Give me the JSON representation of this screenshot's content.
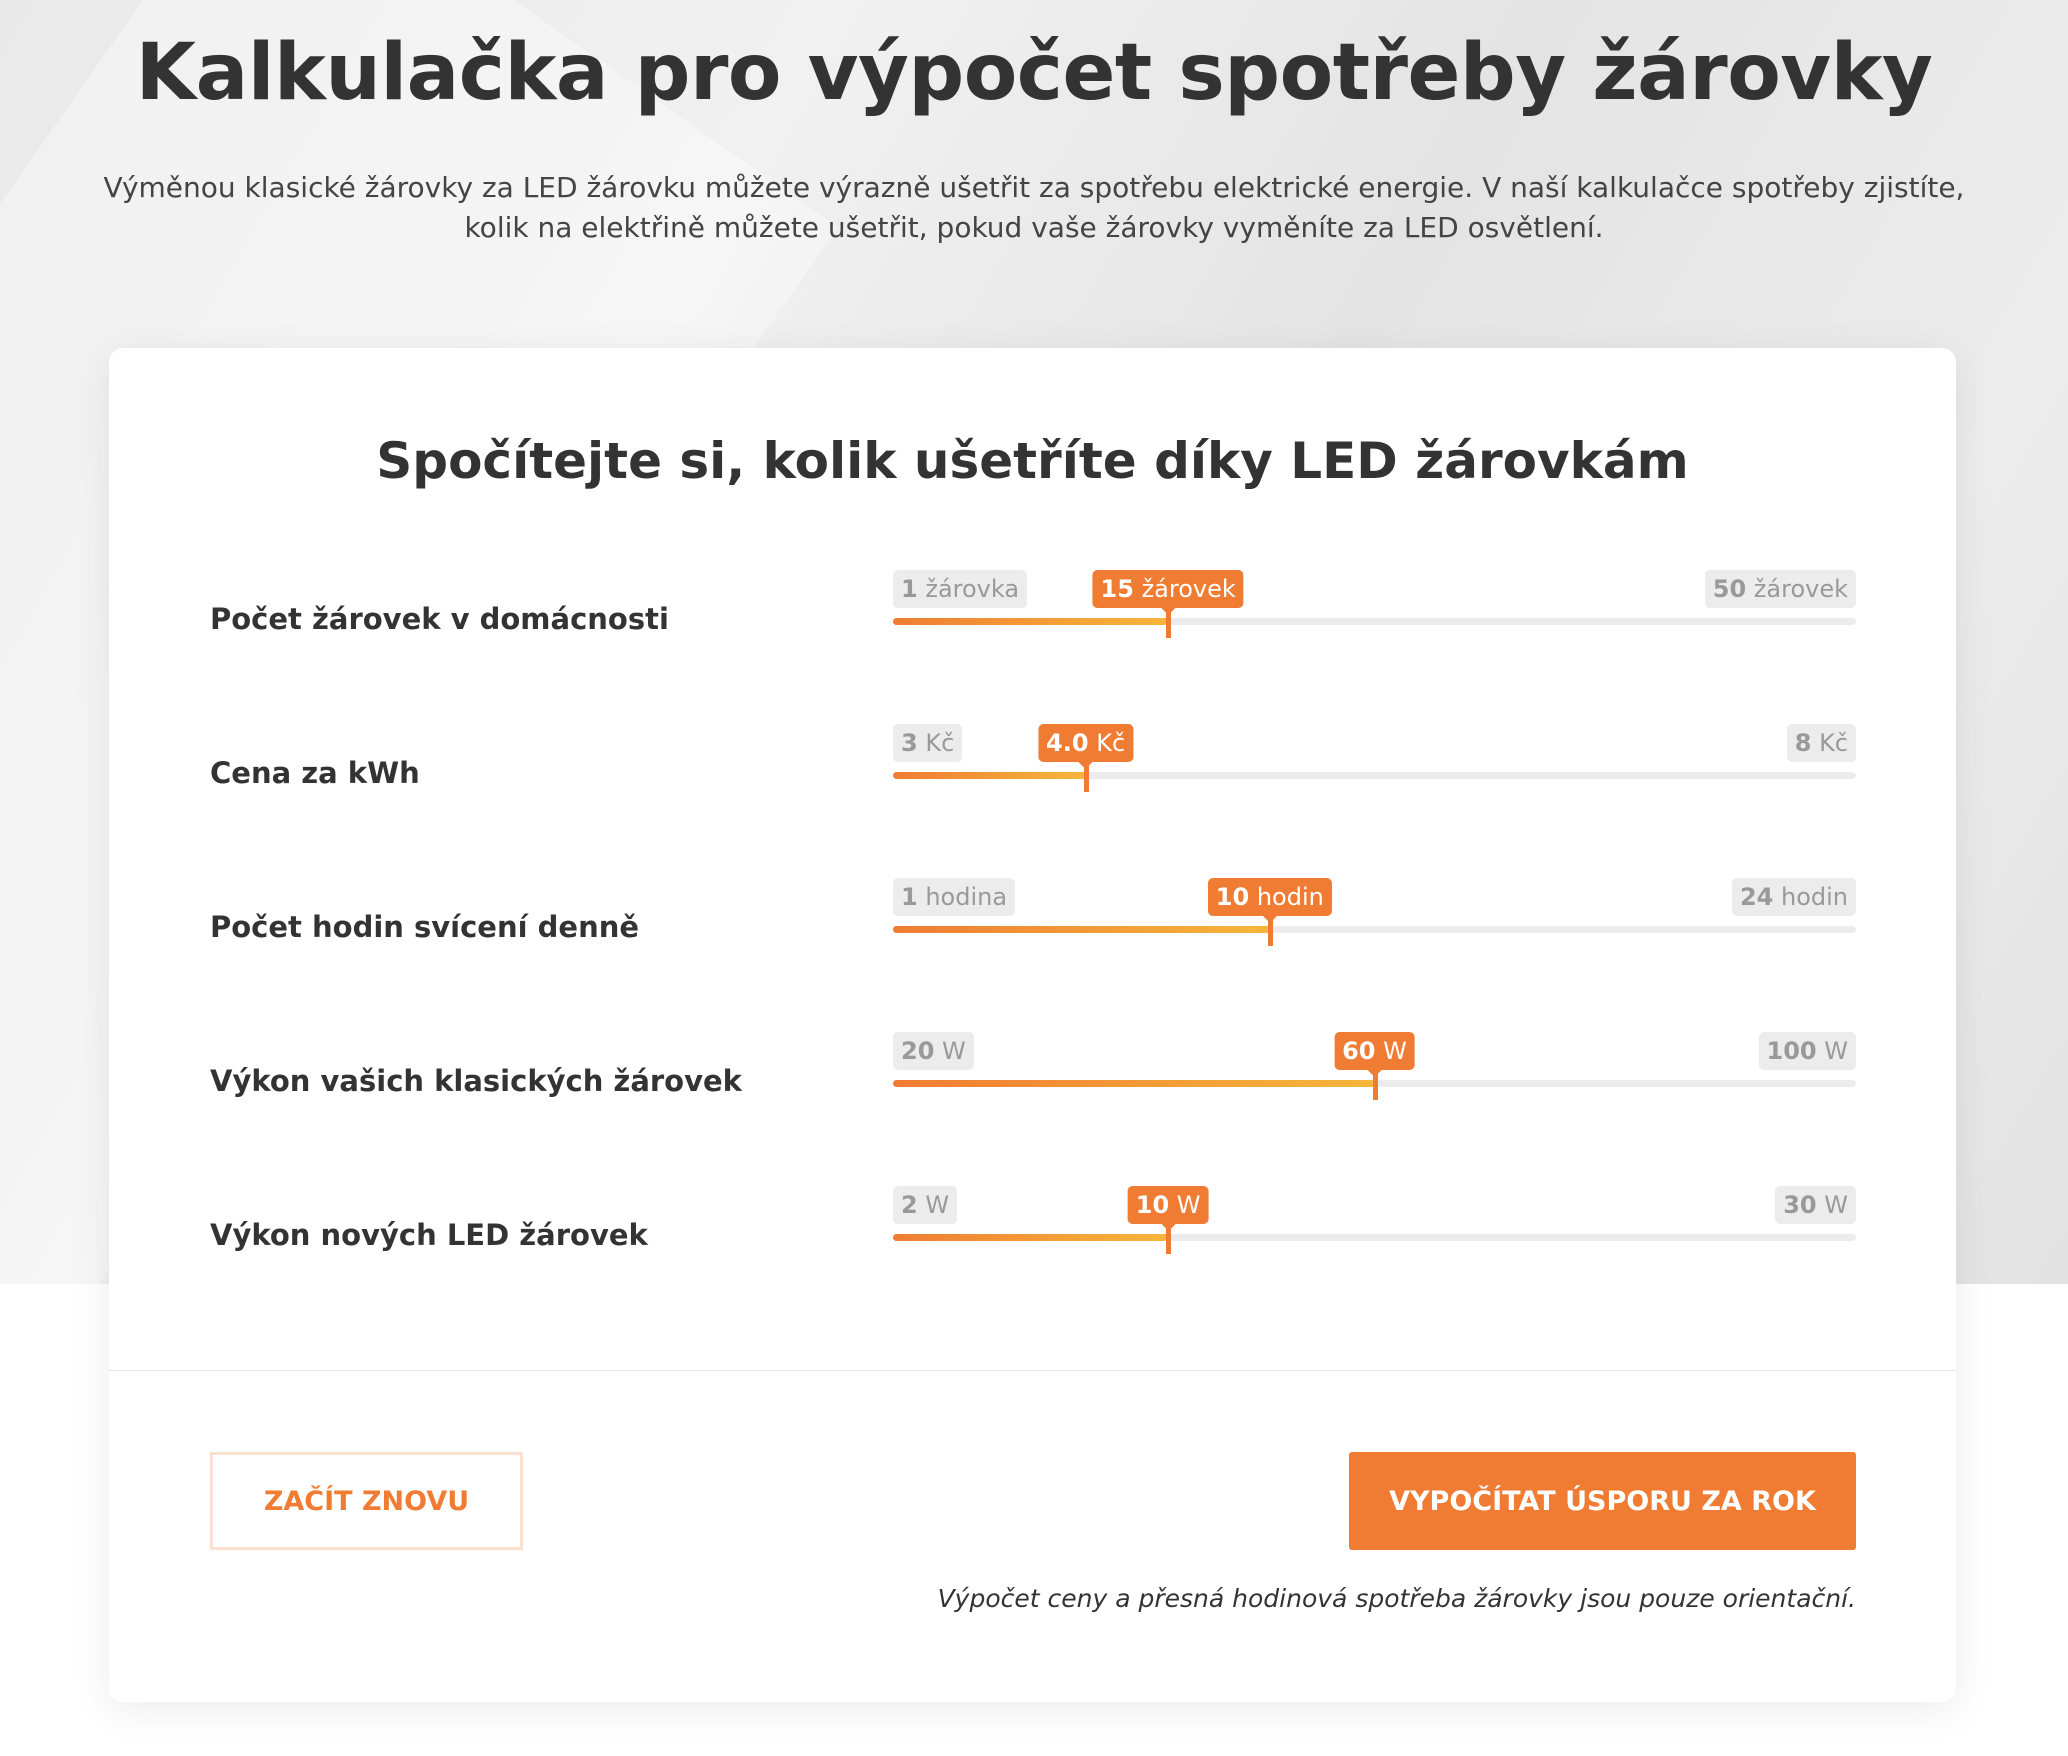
{
  "header": {
    "title": "Kalkulačka pro výpočet spotřeby žárovky",
    "subtitle": "Výměnou klasické žárovky za LED žárovku můžete výrazně ušetřit za spotřebu elektrické energie. V naší kalkulačce spotřeby zjistíte, kolik na elektřině můžete ušetřit, pokud vaše žárovky vyměníte za LED osvětlení."
  },
  "card": {
    "title": "Spočítejte si, kolik ušetříte díky LED žárovkám",
    "sliders": [
      {
        "label": "Počet žárovek v domácnosti",
        "min": 1,
        "min_unit": "žárovka",
        "max": 50,
        "max_unit": "žárovek",
        "value": 15,
        "value_text": "15",
        "value_unit": "žárovek"
      },
      {
        "label": "Cena za kWh",
        "min": 3,
        "min_unit": "Kč",
        "max": 8,
        "max_unit": "Kč",
        "value": 4.0,
        "value_text": "4.0",
        "value_unit": "Kč"
      },
      {
        "label": "Počet hodin svícení denně",
        "min": 1,
        "min_unit": "hodina",
        "max": 24,
        "max_unit": "hodin",
        "value": 10,
        "value_text": "10",
        "value_unit": "hodin"
      },
      {
        "label": "Výkon vašich klasických žárovek",
        "min": 20,
        "min_unit": "W",
        "max": 100,
        "max_unit": "W",
        "value": 60,
        "value_text": "60",
        "value_unit": "W"
      },
      {
        "label": "Výkon nových LED žárovek",
        "min": 2,
        "min_unit": "W",
        "max": 30,
        "max_unit": "W",
        "value": 10,
        "value_text": "10",
        "value_unit": "W"
      }
    ],
    "reset_label": "ZAČÍT ZNOVU",
    "calculate_label": "VYPOČÍTAT ÚSPORU ZA ROK",
    "note": "Výpočet ceny a přesná hodinová spotřeba žárovky jsou pouze orientační."
  },
  "colors": {
    "accent": "#f07c33",
    "accent_end": "#f5b63a",
    "track": "#ececec"
  }
}
